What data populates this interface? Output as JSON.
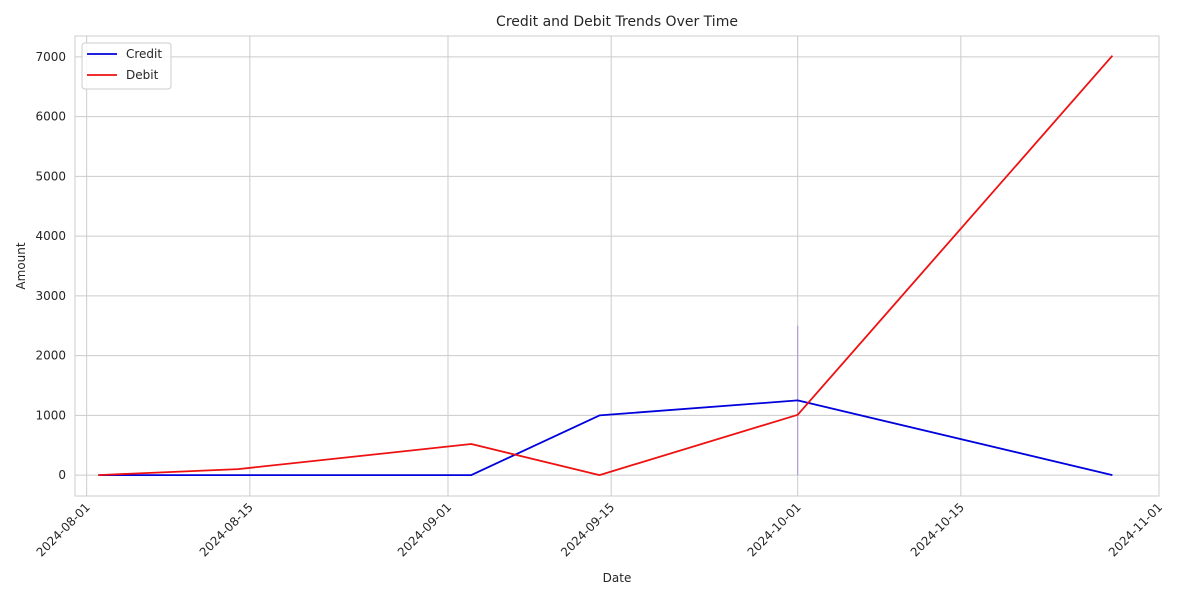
{
  "chart_data": {
    "type": "line",
    "title": "Credit and Debit Trends Over Time",
    "xlabel": "Date",
    "ylabel": "Amount",
    "xlim": [
      "2024-07-31",
      "2024-11-01"
    ],
    "ylim": [
      -350,
      7350
    ],
    "x_ticks": [
      "2024-08-01",
      "2024-08-15",
      "2024-09-01",
      "2024-09-15",
      "2024-10-01",
      "2024-10-15",
      "2024-11-01"
    ],
    "y_ticks": [
      0,
      1000,
      2000,
      3000,
      4000,
      5000,
      6000,
      7000
    ],
    "grid": true,
    "legend": "top-left",
    "series": [
      {
        "name": "Credit",
        "color": "#0000dd",
        "x": [
          "2024-08-02",
          "2024-08-14",
          "2024-09-03",
          "2024-09-14",
          "2024-10-01",
          "2024-10-28"
        ],
        "y": [
          0,
          0,
          0,
          1000,
          1250,
          0
        ]
      },
      {
        "name": "Debit",
        "color": "#ee1111",
        "x": [
          "2024-08-02",
          "2024-08-14",
          "2024-09-03",
          "2024-09-14",
          "2024-10-01",
          "2024-10-28"
        ],
        "y": [
          0,
          100,
          520,
          0,
          1010,
          7020
        ]
      }
    ],
    "annotations": [
      {
        "type": "vline",
        "x": "2024-10-01",
        "y": [
          0,
          2500
        ],
        "color": "#a78bdb"
      }
    ]
  }
}
